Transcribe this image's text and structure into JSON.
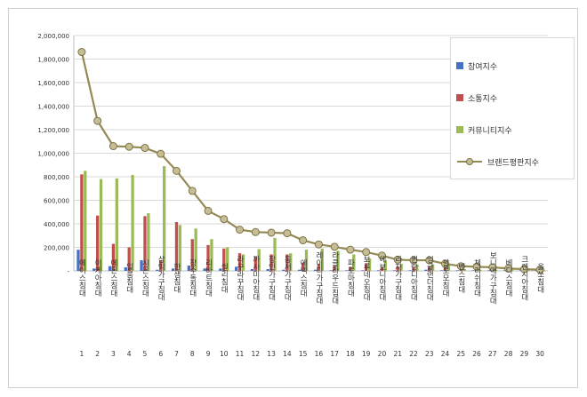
{
  "chart_data": {
    "type": "bar",
    "title": "",
    "xlabel": "",
    "ylabel": "",
    "ylim": [
      0,
      2000000
    ],
    "y_ticks": [
      "-",
      "200,000",
      "400,000",
      "600,000",
      "800,000",
      "1,000,000",
      "1,200,000",
      "1,400,000",
      "1,600,000",
      "1,800,000",
      "2,000,000"
    ],
    "grid": true,
    "legend_position": "right",
    "categories": [
      "에이스침대",
      "이케아침대",
      "에몬스침대",
      "일룸침대",
      "시몬스침대",
      "삼익가구침대",
      "한샘침대",
      "장수돌침대",
      "리바트침대",
      "씰리침대",
      "라꾸라꾸침대",
      "까사미아침대",
      "장인가구침대",
      "동서가구침대",
      "에넥스침대",
      "레이디가구침대",
      "라클라우드침대",
      "파로마침대",
      "보루네오침대",
      "에보니아침대",
      "라자가구침대",
      "퀸란디아침대",
      "잉글랜더침대",
      "팔로모침대",
      "벤스침대",
      "체리쉬침대",
      "보니애가구침대",
      "베디스침대",
      "크렌시아침대",
      "올쏘침대"
    ],
    "index_labels": [
      "1",
      "2",
      "3",
      "4",
      "5",
      "6",
      "7",
      "8",
      "9",
      "10",
      "11",
      "12",
      "13",
      "14",
      "15",
      "16",
      "17",
      "18",
      "19",
      "20",
      "21",
      "22",
      "23",
      "24",
      "25",
      "26",
      "27",
      "28",
      "29",
      "30"
    ],
    "series": [
      {
        "name": "참여지수",
        "color": "#4472C4",
        "values": [
          180000,
          20000,
          40000,
          30000,
          90000,
          10000,
          20000,
          45000,
          20000,
          20000,
          35000,
          15000,
          15000,
          10000,
          10000,
          10000,
          5000,
          5000,
          5000,
          5000,
          5000,
          5000,
          10000,
          5000,
          5000,
          5000,
          5000,
          5000,
          5000,
          5000
        ]
      },
      {
        "name": "소통지수",
        "color": "#C0504D",
        "values": [
          820000,
          470000,
          230000,
          200000,
          465000,
          90000,
          415000,
          270000,
          220000,
          190000,
          150000,
          120000,
          140000,
          140000,
          70000,
          60000,
          40000,
          35000,
          60000,
          30000,
          35000,
          30000,
          40000,
          30000,
          25000,
          20000,
          20000,
          15000,
          15000,
          10000
        ]
      },
      {
        "name": "커뮤니티지수",
        "color": "#9BBB59",
        "values": [
          850000,
          780000,
          785000,
          815000,
          490000,
          890000,
          390000,
          360000,
          270000,
          200000,
          140000,
          185000,
          280000,
          150000,
          180000,
          190000,
          170000,
          140000,
          105000,
          90000,
          60000,
          55000,
          55000,
          55000,
          15000,
          10000,
          10000,
          10000,
          10000,
          10000
        ]
      },
      {
        "name": "브랜드평판지수",
        "color": "#948A54",
        "type": "line",
        "values": [
          1860000,
          1275000,
          1060000,
          1055000,
          1045000,
          995000,
          850000,
          680000,
          510000,
          440000,
          350000,
          330000,
          325000,
          320000,
          260000,
          225000,
          205000,
          180000,
          160000,
          130000,
          95000,
          90000,
          90000,
          60000,
          40000,
          35000,
          30000,
          20000,
          15000,
          10000
        ]
      }
    ]
  }
}
